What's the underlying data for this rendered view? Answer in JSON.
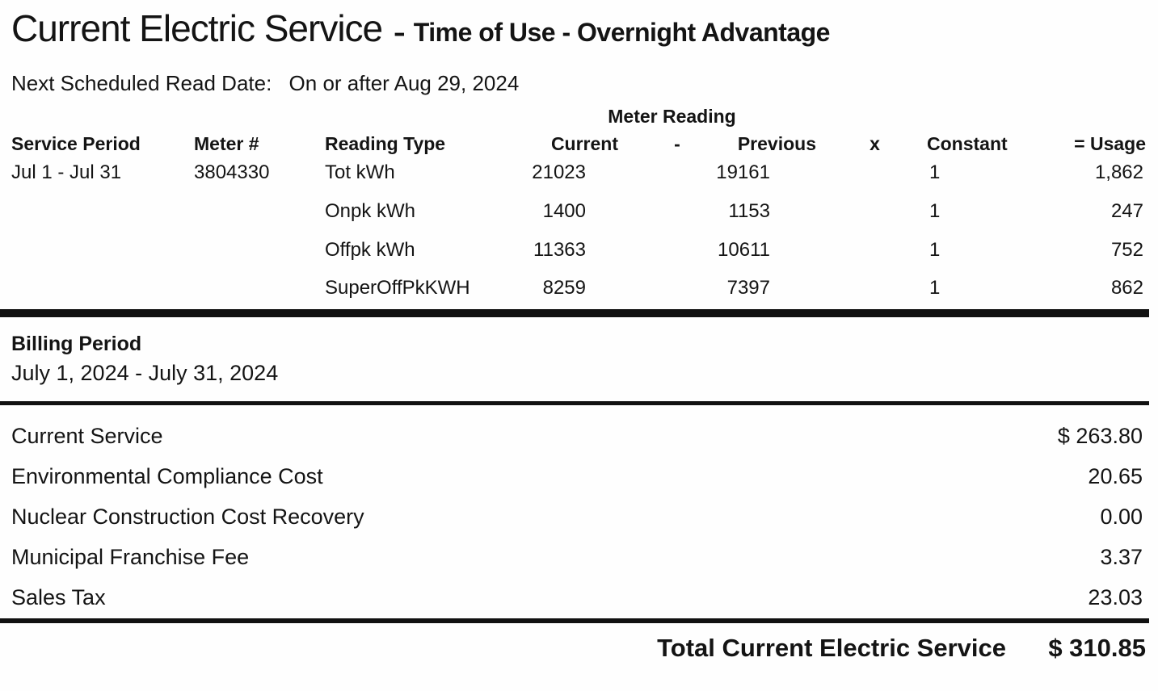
{
  "header": {
    "title": "Current Electric Service",
    "separator": "-",
    "subtitle": "Time of Use - Overnight Advantage"
  },
  "read_date": {
    "label": "Next Scheduled Read Date:",
    "value": "On or after Aug 29, 2024"
  },
  "meter_table": {
    "group_header": "Meter Reading",
    "columns": {
      "service_period": "Service Period",
      "meter_number": "Meter #",
      "reading_type": "Reading Type",
      "current": "Current",
      "minus": "-",
      "previous": "Previous",
      "multiply": "x",
      "constant": "Constant",
      "usage": "= Usage"
    },
    "service_period": "Jul 1 - Jul 31",
    "meter_number": "3804330",
    "rows": [
      {
        "reading_type": "Tot kWh",
        "current": "21023",
        "previous": "19161",
        "constant": "1",
        "usage": "1,862"
      },
      {
        "reading_type": "Onpk kWh",
        "current": "1400",
        "previous": "1153",
        "constant": "1",
        "usage": "247"
      },
      {
        "reading_type": "Offpk kWh",
        "current": "11363",
        "previous": "10611",
        "constant": "1",
        "usage": "752"
      },
      {
        "reading_type": "SuperOffPkKWH",
        "current": "8259",
        "previous": "7397",
        "constant": "1",
        "usage": "862"
      }
    ]
  },
  "billing": {
    "label": "Billing Period",
    "period": "July 1, 2024 - July 31, 2024"
  },
  "charges": [
    {
      "label": "Current Service",
      "amount": "$ 263.80"
    },
    {
      "label": "Environmental Compliance Cost",
      "amount": "20.65"
    },
    {
      "label": "Nuclear Construction Cost Recovery",
      "amount": "0.00"
    },
    {
      "label": "Municipal Franchise Fee",
      "amount": "3.37"
    },
    {
      "label": "Sales Tax",
      "amount": "23.03"
    }
  ],
  "total": {
    "label": "Total Current Electric Service",
    "amount": "$ 310.85"
  },
  "colors": {
    "text": "#141414",
    "background": "#fefefe",
    "rule": "#111111"
  }
}
